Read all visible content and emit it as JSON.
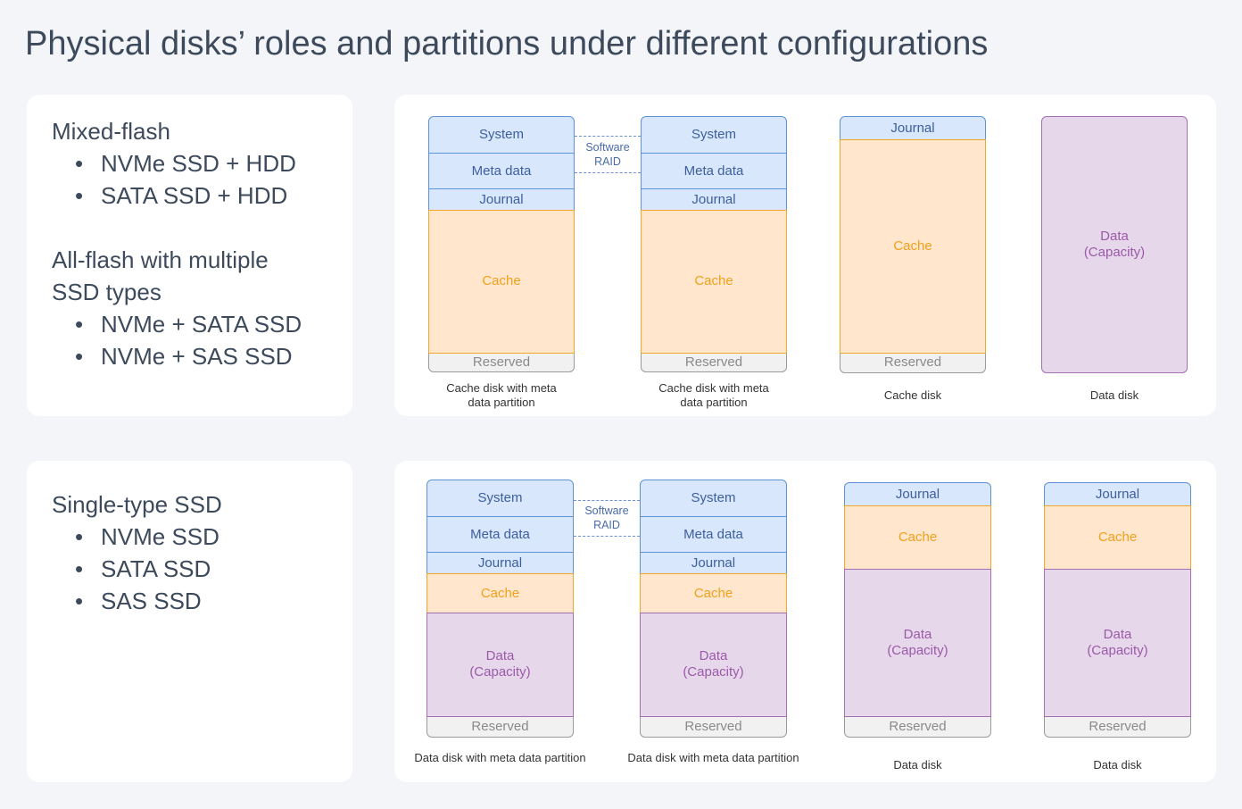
{
  "title": "Physical disks’ roles and partitions under different configurations",
  "groups": [
    {
      "configurations": [
        {
          "heading": "Mixed-flash",
          "items": [
            "NVMe SSD + HDD",
            "SATA SSD + HDD"
          ]
        },
        {
          "heading": "All-flash with multiple\nSSD types",
          "items": [
            "NVMe + SATA SSD",
            "NVMe + SAS SSD"
          ]
        }
      ],
      "raid_label": "Software\nRAID",
      "disks": [
        {
          "caption": "Cache disk with meta data partition",
          "partitions": [
            {
              "label": "System",
              "color": "#d8e7fb"
            },
            {
              "label": "Meta data",
              "color": "#d8e7fb"
            },
            {
              "label": "Journal",
              "color": "#d8e7fb"
            },
            {
              "label": "Cache",
              "color": "#ffe6cc"
            },
            {
              "label": "Reserved",
              "color": "#f1f1f1"
            }
          ]
        },
        {
          "caption": "Cache disk with meta data partition",
          "partitions": [
            {
              "label": "System",
              "color": "#d8e7fb"
            },
            {
              "label": "Meta data",
              "color": "#d8e7fb"
            },
            {
              "label": "Journal",
              "color": "#d8e7fb"
            },
            {
              "label": "Cache",
              "color": "#ffe6cc"
            },
            {
              "label": "Reserved",
              "color": "#f1f1f1"
            }
          ]
        },
        {
          "caption": "Cache disk",
          "partitions": [
            {
              "label": "Journal",
              "color": "#d8e7fb"
            },
            {
              "label": "Cache",
              "color": "#ffe6cc"
            },
            {
              "label": "Reserved",
              "color": "#f1f1f1"
            }
          ]
        },
        {
          "caption": "Data disk",
          "partitions": [
            {
              "label": "Data\n(Capacity)",
              "color": "#e6d7eb"
            }
          ]
        }
      ]
    },
    {
      "configurations": [
        {
          "heading": "Single-type SSD",
          "items": [
            "NVMe SSD",
            "SATA SSD",
            "SAS SSD"
          ]
        }
      ],
      "raid_label": "Software\nRAID",
      "disks": [
        {
          "caption": "Data disk with meta data partition",
          "partitions": [
            {
              "label": "System",
              "color": "#d8e7fb"
            },
            {
              "label": "Meta data",
              "color": "#d8e7fb"
            },
            {
              "label": "Journal",
              "color": "#d8e7fb"
            },
            {
              "label": "Cache",
              "color": "#ffe6cc"
            },
            {
              "label": "Data\n(Capacity)",
              "color": "#e6d7eb"
            },
            {
              "label": "Reserved",
              "color": "#f1f1f1"
            }
          ]
        },
        {
          "caption": "Data disk with meta data partition",
          "partitions": [
            {
              "label": "System",
              "color": "#d8e7fb"
            },
            {
              "label": "Meta data",
              "color": "#d8e7fb"
            },
            {
              "label": "Journal",
              "color": "#d8e7fb"
            },
            {
              "label": "Cache",
              "color": "#ffe6cc"
            },
            {
              "label": "Data\n(Capacity)",
              "color": "#e6d7eb"
            },
            {
              "label": "Reserved",
              "color": "#f1f1f1"
            }
          ]
        },
        {
          "caption": "Data disk",
          "partitions": [
            {
              "label": "Journal",
              "color": "#d8e7fb"
            },
            {
              "label": "Cache",
              "color": "#ffe6cc"
            },
            {
              "label": "Data\n(Capacity)",
              "color": "#e6d7eb"
            },
            {
              "label": "Reserved",
              "color": "#f1f1f1"
            }
          ]
        },
        {
          "caption": "Data disk",
          "partitions": [
            {
              "label": "Journal",
              "color": "#d8e7fb"
            },
            {
              "label": "Cache",
              "color": "#ffe6cc"
            },
            {
              "label": "Data\n(Capacity)",
              "color": "#e6d7eb"
            },
            {
              "label": "Reserved",
              "color": "#f1f1f1"
            }
          ]
        }
      ]
    }
  ]
}
